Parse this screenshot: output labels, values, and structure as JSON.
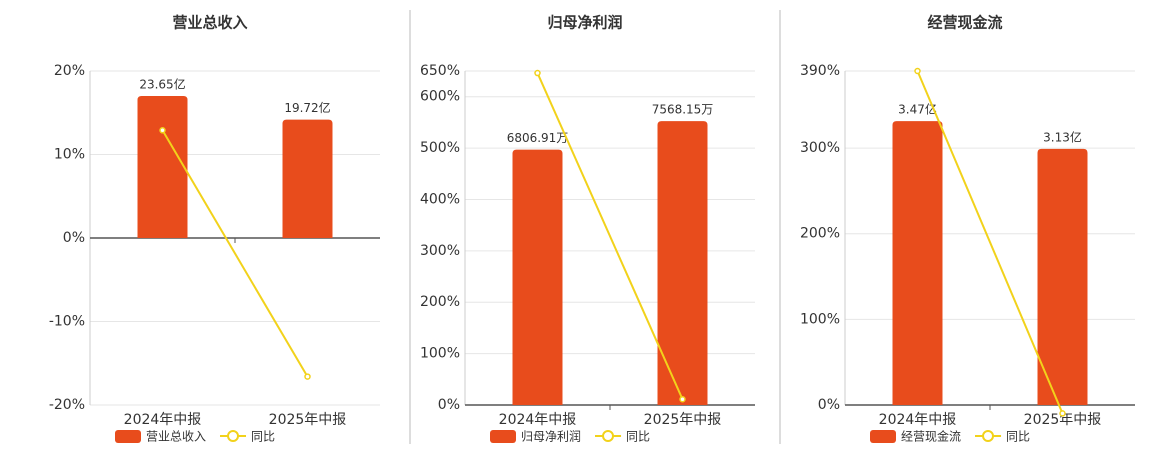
{
  "chart_data": [
    {
      "type": "bar",
      "title": "营业总收入",
      "categories": [
        "2024年中报",
        "2025年中报"
      ],
      "series": [
        {
          "name": "营业总收入",
          "color": "#e84c1c",
          "values": [
            23.65,
            19.72
          ],
          "value_labels": [
            "23.65亿",
            "19.72亿"
          ]
        },
        {
          "name": "同比",
          "type": "line",
          "color": "#f2d21b",
          "values": [
            12.9,
            -16.6
          ]
        }
      ],
      "ylim": [
        -20,
        20
      ],
      "yticks": [
        {
          "value": -20,
          "label": "-20%"
        },
        {
          "value": -10,
          "label": "-10%"
        },
        {
          "value": 0,
          "label": "0%"
        },
        {
          "value": 10,
          "label": "10%"
        },
        {
          "value": 20,
          "label": "20%"
        }
      ],
      "grid": true
    },
    {
      "type": "bar",
      "title": "归母净利润",
      "categories": [
        "2024年中报",
        "2025年中报"
      ],
      "series": [
        {
          "name": "归母净利润",
          "color": "#e84c1c",
          "values": [
            6806.91,
            7568.15
          ],
          "value_labels": [
            "6806.91万",
            "7568.15万"
          ]
        },
        {
          "name": "同比",
          "type": "line",
          "color": "#f2d21b",
          "values": [
            646,
            11.2
          ]
        }
      ],
      "ylim": [
        0,
        650
      ],
      "yticks": [
        {
          "value": 0,
          "label": "0%"
        },
        {
          "value": 100,
          "label": "100%"
        },
        {
          "value": 200,
          "label": "200%"
        },
        {
          "value": 300,
          "label": "300%"
        },
        {
          "value": 400,
          "label": "400%"
        },
        {
          "value": 500,
          "label": "500%"
        },
        {
          "value": 600,
          "label": "600%"
        },
        {
          "value": 650,
          "label": "650%"
        }
      ],
      "grid": true
    },
    {
      "type": "bar",
      "title": "经营现金流",
      "categories": [
        "2024年中报",
        "2025年中报"
      ],
      "series": [
        {
          "name": "经营现金流",
          "color": "#e84c1c",
          "values": [
            3.47,
            3.13
          ],
          "value_labels": [
            "3.47亿",
            "3.13亿"
          ]
        },
        {
          "name": "同比",
          "type": "line",
          "color": "#f2d21b",
          "values": [
            390,
            -9.8
          ]
        }
      ],
      "ylim": [
        0,
        390
      ],
      "yticks": [
        {
          "value": 0,
          "label": "0%"
        },
        {
          "value": 100,
          "label": "100%"
        },
        {
          "value": 200,
          "label": "200%"
        },
        {
          "value": 300,
          "label": "300%"
        },
        {
          "value": 390,
          "label": "390%"
        }
      ],
      "grid": true
    }
  ]
}
